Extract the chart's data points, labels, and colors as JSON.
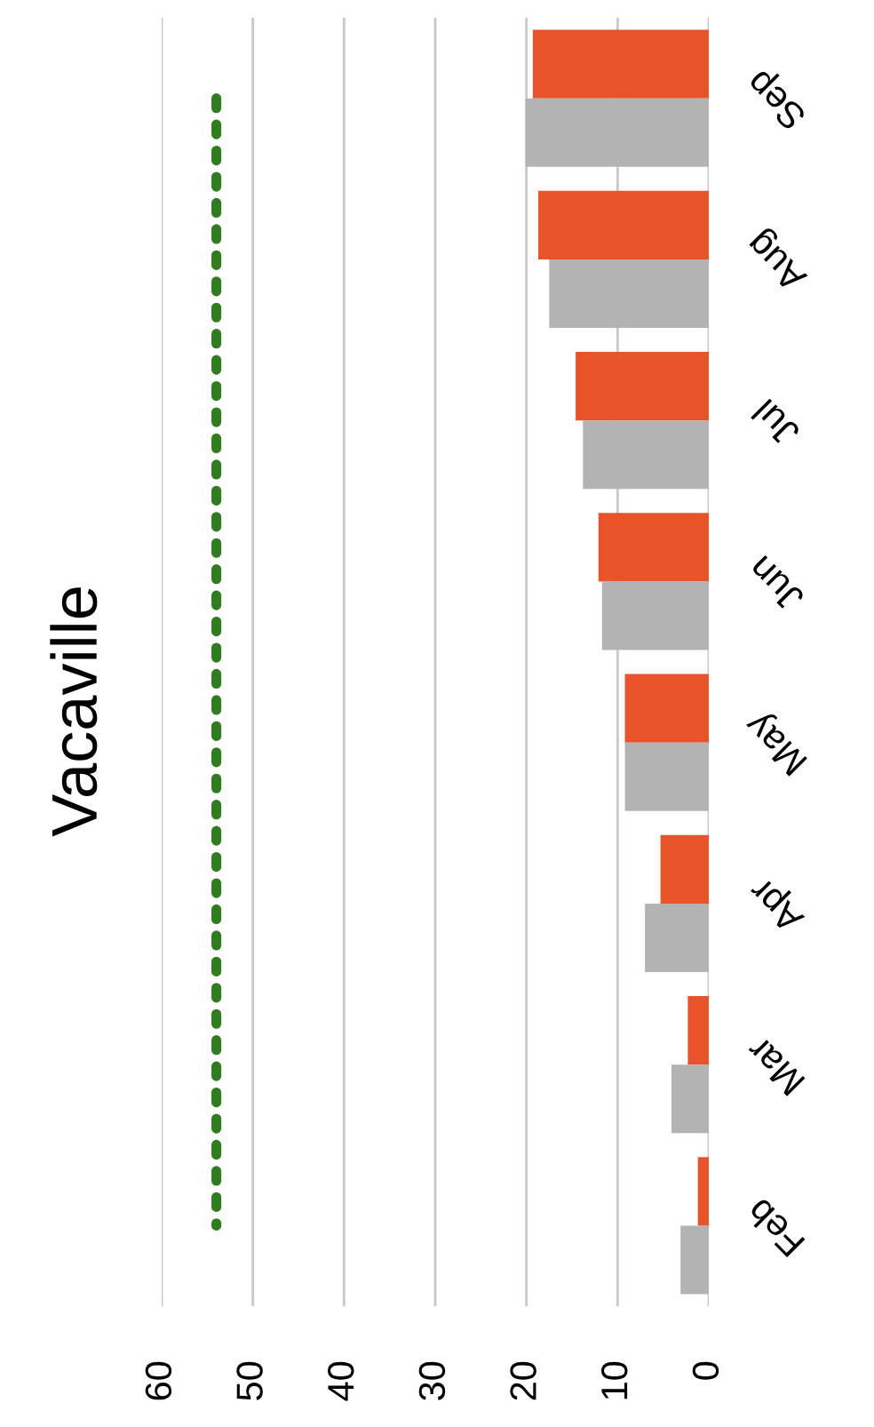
{
  "chart_data": {
    "type": "bar",
    "orientation": "horizontal",
    "title": "Vacaville",
    "categories": [
      "Sep",
      "Aug",
      "Jul",
      "Jun",
      "May",
      "Apr",
      "Mar",
      "Feb"
    ],
    "series": [
      {
        "color": "#e8542a",
        "values": [
          19.3,
          18.7,
          14.6,
          12.1,
          9.2,
          5.3,
          2.3,
          1.2
        ]
      },
      {
        "color": "#b3b3b3",
        "values": [
          20.1,
          17.5,
          13.8,
          11.7,
          9.2,
          7.0,
          4.1,
          3.1
        ]
      },
      {
        "type": "line",
        "color": "#2e7d1e",
        "line_style": "dotted",
        "values": [
          54,
          54,
          54,
          54,
          54,
          54,
          54,
          54
        ]
      }
    ],
    "xlim": [
      60,
      0
    ],
    "xticks": [
      60,
      50,
      40,
      30,
      20,
      10,
      0
    ],
    "grid": "x",
    "legend": false
  }
}
